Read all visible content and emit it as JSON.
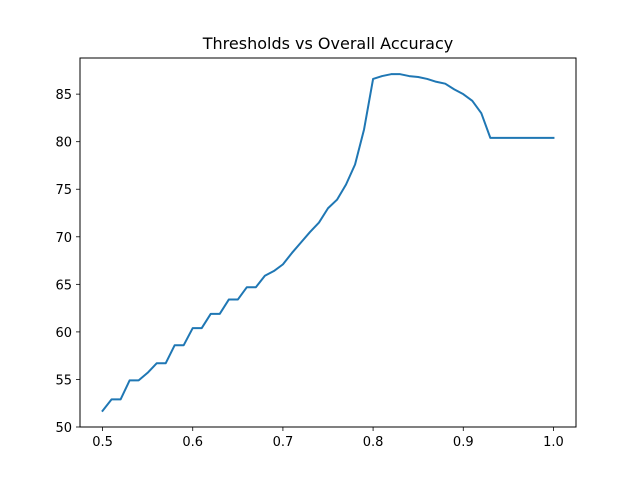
{
  "chart_data": {
    "type": "line",
    "title": "Thresholds vs Overall Accuracy",
    "xlabel": "",
    "ylabel": "",
    "xlim": [
      0.475,
      1.025
    ],
    "ylim": [
      50,
      88.8
    ],
    "xticks": [
      0.5,
      0.6,
      0.7,
      0.8,
      0.9,
      1.0
    ],
    "xtick_labels": [
      "0.5",
      "0.6",
      "0.7",
      "0.8",
      "0.9",
      "1.0"
    ],
    "yticks": [
      50,
      55,
      60,
      65,
      70,
      75,
      80,
      85
    ],
    "ytick_labels": [
      "50",
      "55",
      "60",
      "65",
      "70",
      "75",
      "80",
      "85"
    ],
    "grid": false,
    "line_color": "#1f77b4",
    "x": [
      0.5,
      0.51,
      0.52,
      0.53,
      0.54,
      0.55,
      0.56,
      0.57,
      0.58,
      0.59,
      0.6,
      0.61,
      0.62,
      0.63,
      0.64,
      0.65,
      0.66,
      0.67,
      0.68,
      0.69,
      0.7,
      0.71,
      0.72,
      0.73,
      0.74,
      0.75,
      0.76,
      0.77,
      0.78,
      0.79,
      0.8,
      0.81,
      0.82,
      0.83,
      0.84,
      0.85,
      0.86,
      0.87,
      0.88,
      0.89,
      0.9,
      0.91,
      0.92,
      0.93,
      0.94,
      0.95,
      0.96,
      0.97,
      0.98,
      0.99,
      1.0
    ],
    "y": [
      51.7,
      52.9,
      52.9,
      54.9,
      54.9,
      55.7,
      56.7,
      56.7,
      58.6,
      58.6,
      60.4,
      60.4,
      61.9,
      61.9,
      63.4,
      63.4,
      64.7,
      64.7,
      65.9,
      66.4,
      67.1,
      68.3,
      69.4,
      70.5,
      71.5,
      73.0,
      73.9,
      75.5,
      77.6,
      81.3,
      86.6,
      86.9,
      87.1,
      87.1,
      86.9,
      86.8,
      86.6,
      86.3,
      86.1,
      85.5,
      85.0,
      84.3,
      83.0,
      80.4,
      80.4,
      80.4,
      80.4,
      80.4,
      80.4,
      80.4,
      80.4
    ]
  }
}
